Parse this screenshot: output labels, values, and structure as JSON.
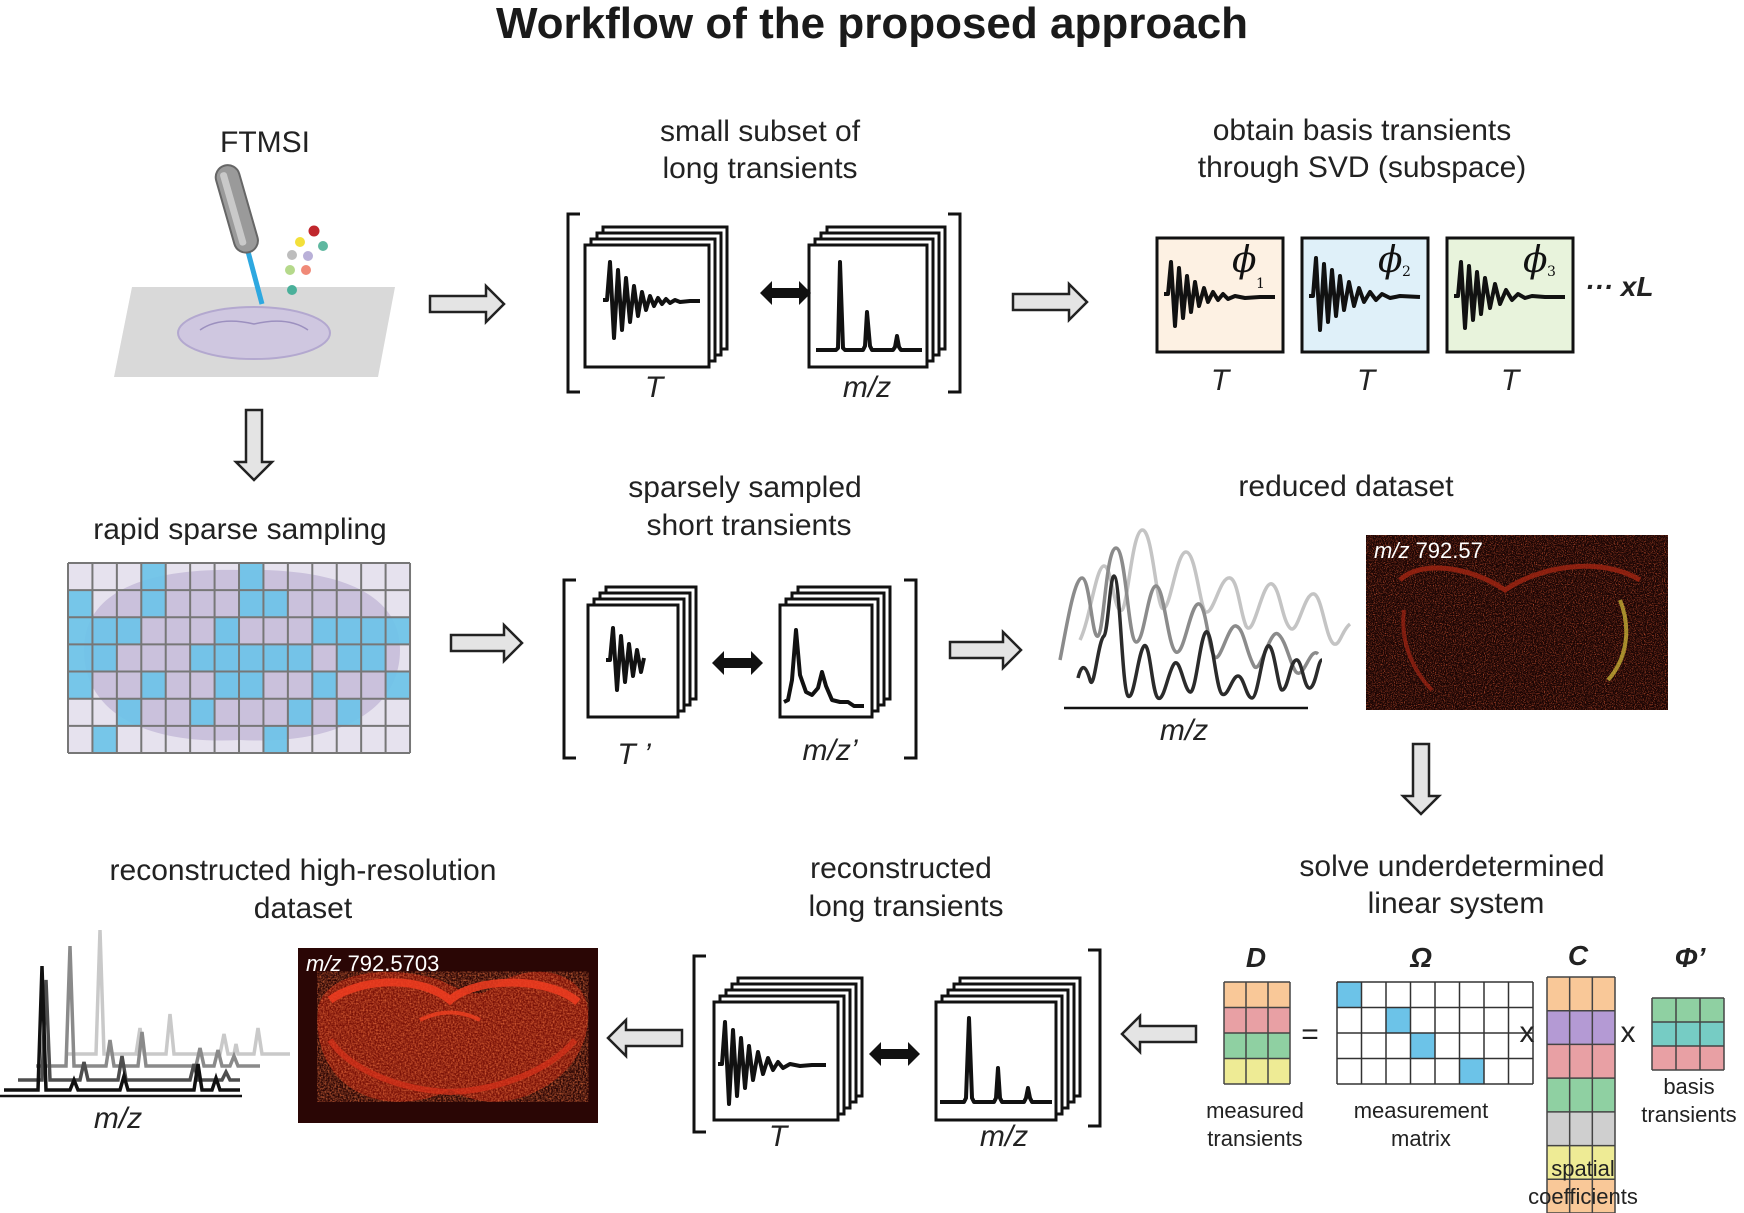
{
  "title": "Workflow of the proposed approach",
  "steps": {
    "ftmsi": "FTMSI",
    "long_subset": [
      "small subset of",
      "long transients"
    ],
    "basis": [
      "obtain basis transients",
      "through SVD (subspace)"
    ],
    "sparse_sampling": "rapid sparse sampling",
    "short_transients": [
      "sparsely sampled",
      "short transients"
    ],
    "reduced": "reduced dataset",
    "solve": [
      "solve underdetermined",
      "linear system"
    ],
    "recon_long": [
      "reconstructed",
      "long transients"
    ],
    "recon_hr": [
      "reconstructed high-resolution",
      "dataset"
    ]
  },
  "axis": {
    "T": "T",
    "mz": "m/z",
    "T_prime": "T ’",
    "mz_prime": "m/z’"
  },
  "basis_items": [
    {
      "symbol": "ϕ",
      "subscript": "1",
      "color": "#fdf1e3"
    },
    {
      "symbol": "ϕ",
      "subscript": "2",
      "color": "#dff0f9"
    },
    {
      "symbol": "ϕ",
      "subscript": "3",
      "color": "#e8f3dc"
    }
  ],
  "basis_suffix": "··· xL",
  "images": {
    "reduced_label_italic": "m/z",
    "reduced_label_value": " 792.57",
    "hr_label_italic": "m/z",
    "hr_label_value": " 792.5703"
  },
  "equation": {
    "D": "D",
    "Omega": "Ω",
    "C": "C",
    "Phi": "Φ’",
    "equals": "=",
    "times1": "x",
    "times2": "x",
    "D_caption": [
      "measured",
      "transients"
    ],
    "Omega_caption": [
      "measurement",
      "matrix"
    ],
    "C_caption": [
      "spatial",
      "coefficients"
    ],
    "Phi_caption": [
      "basis",
      "transients"
    ]
  },
  "colors": {
    "sample_blue": "#6cc3e8",
    "orange": "#f9c898",
    "pink": "#e8a0a4",
    "green": "#8fd0a2",
    "yellow": "#eeeb95",
    "purple": "#b49ad4",
    "gray": "#cfcfcf",
    "teal": "#76ccc4",
    "heat_dark": "#2b0505",
    "heat_red": "#e42414"
  }
}
